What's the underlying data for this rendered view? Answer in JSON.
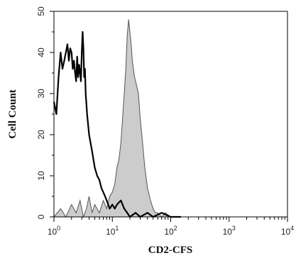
{
  "chart_data": {
    "type": "area",
    "title": "",
    "xlabel": "CD2-CFS",
    "ylabel": "Cell Count",
    "xscale": "log",
    "xlim": [
      1,
      10000
    ],
    "ylim": [
      0,
      50
    ],
    "grid": false,
    "legend": "none",
    "x_ticks": [
      {
        "value": 1,
        "base": "10",
        "exp": "0"
      },
      {
        "value": 10,
        "base": "10",
        "exp": "1"
      },
      {
        "value": 100,
        "base": "10",
        "exp": "2"
      },
      {
        "value": 1000,
        "base": "10",
        "exp": "3"
      },
      {
        "value": 10000,
        "base": "10",
        "exp": "4"
      }
    ],
    "y_ticks": [
      "0",
      "10",
      "20",
      "30",
      "40",
      "50"
    ],
    "series": [
      {
        "style": "filled-gray",
        "fill": "#cccccc",
        "stroke": "#555555",
        "x": [
          1.0,
          1.3,
          1.6,
          2.0,
          2.4,
          2.8,
          3.2,
          3.6,
          4.0,
          4.5,
          5.0,
          6.0,
          7.0,
          8.0,
          9.0,
          10.0,
          11.0,
          12.0,
          13.0,
          14.0,
          15.0,
          16.0,
          17.0,
          18.0,
          19.0,
          20.0,
          21.0,
          22.0,
          24.0,
          26.0,
          28.0,
          30.0,
          33.0,
          36.0,
          40.0,
          45.0,
          50.0,
          55.0,
          60.0,
          70.0,
          80.0,
          100.0
        ],
        "values": [
          0,
          2,
          0,
          3,
          1,
          4,
          0,
          2,
          5,
          1,
          3,
          1,
          4,
          2,
          5,
          6,
          8,
          12,
          14,
          18,
          24,
          30,
          36,
          44,
          48,
          45,
          42,
          38,
          34,
          32,
          30,
          24,
          18,
          12,
          7,
          4,
          2,
          1,
          1,
          0,
          1,
          0
        ]
      },
      {
        "style": "black-line",
        "stroke": "#000000",
        "x": [
          1.0,
          1.1,
          1.2,
          1.3,
          1.4,
          1.5,
          1.6,
          1.7,
          1.8,
          1.9,
          2.0,
          2.1,
          2.2,
          2.3,
          2.4,
          2.5,
          2.6,
          2.7,
          2.8,
          2.9,
          3.0,
          3.1,
          3.2,
          3.3,
          3.4,
          3.5,
          3.7,
          4.0,
          4.5,
          5.0,
          5.5,
          6.0,
          6.5,
          7.0,
          7.5,
          8.0,
          9.0,
          10.0,
          11.0,
          12.0,
          14.0,
          16.0,
          18.0,
          20.0,
          25.0,
          30.0,
          40.0,
          50.0,
          70.0,
          100.0,
          150.0
        ],
        "values": [
          28,
          25,
          34,
          40,
          36,
          38,
          40,
          42,
          38,
          41,
          40,
          36,
          38,
          35,
          33,
          39,
          34,
          37,
          35,
          33,
          40,
          45,
          41,
          34,
          36,
          30,
          25,
          20,
          16,
          12,
          10,
          9,
          7,
          6,
          5,
          4,
          2,
          3,
          2,
          3,
          4,
          2,
          1,
          0,
          1,
          0,
          1,
          0,
          1,
          0,
          0
        ]
      }
    ]
  }
}
